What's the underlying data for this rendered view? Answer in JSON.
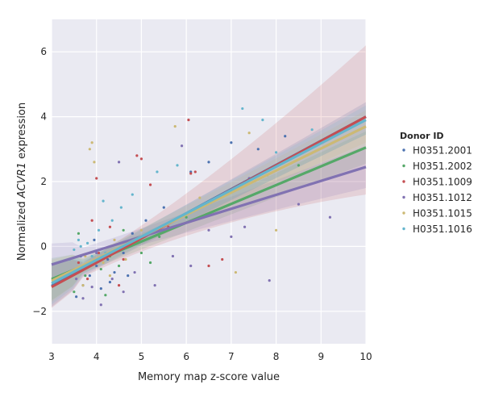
{
  "chart_data": {
    "type": "scatter",
    "xlabel": "Memory map z-score value",
    "ylabel_prefix": "Normalized ",
    "ylabel_gene": "ACVR1",
    "ylabel_suffix": " expression",
    "xlim": [
      3,
      10
    ],
    "ylim": [
      -3,
      7
    ],
    "xticks": [
      3,
      4,
      5,
      6,
      7,
      8,
      9,
      10
    ],
    "yticks": [
      -2,
      0,
      2,
      4,
      6
    ],
    "grid": true,
    "background": "#eaeaf2",
    "legend": {
      "title": "Donor ID",
      "placement": "right"
    },
    "series": [
      {
        "name": "H0351.2001",
        "color": "#4c72b0",
        "fit": {
          "intercept": -3.45,
          "slope": 0.745
        },
        "band": {
          "lo10": 3.45,
          "hi10": 4.45
        },
        "points": [
          [
            3.55,
            -1.55
          ],
          [
            3.7,
            -1.2
          ],
          [
            3.85,
            -0.9
          ],
          [
            4.0,
            -0.6
          ],
          [
            4.1,
            -1.3
          ],
          [
            4.25,
            -0.4
          ],
          [
            4.4,
            -0.8
          ],
          [
            4.6,
            -0.2
          ],
          [
            4.8,
            0.4
          ],
          [
            5.1,
            0.8
          ],
          [
            5.5,
            1.2
          ],
          [
            6.1,
            2.3
          ],
          [
            6.5,
            2.6
          ],
          [
            7.0,
            3.2
          ],
          [
            7.6,
            3.0
          ],
          [
            8.2,
            3.4
          ],
          [
            3.65,
            -0.3
          ],
          [
            3.95,
            0.2
          ],
          [
            4.3,
            -1.1
          ],
          [
            4.7,
            -0.9
          ]
        ]
      },
      {
        "name": "H0351.2002",
        "color": "#55a868",
        "fit": {
          "intercept": -2.75,
          "slope": 0.58
        },
        "band": {
          "lo10": 2.55,
          "hi10": 3.55
        },
        "points": [
          [
            3.5,
            -1.4
          ],
          [
            3.75,
            -0.9
          ],
          [
            3.9,
            -0.5
          ],
          [
            4.1,
            -0.7
          ],
          [
            4.3,
            -0.3
          ],
          [
            4.5,
            -0.6
          ],
          [
            4.75,
            0.1
          ],
          [
            5.0,
            -0.2
          ],
          [
            5.4,
            0.3
          ],
          [
            6.0,
            0.9
          ],
          [
            6.6,
            1.4
          ],
          [
            7.2,
            1.9
          ],
          [
            7.8,
            2.2
          ],
          [
            8.5,
            2.5
          ],
          [
            3.6,
            0.4
          ],
          [
            4.2,
            -1.5
          ],
          [
            4.6,
            0.5
          ],
          [
            5.2,
            -0.5
          ]
        ]
      },
      {
        "name": "H0351.1009",
        "color": "#c44e52",
        "fit": {
          "intercept": -3.5,
          "slope": 0.75
        },
        "band": {
          "lo10": 1.6,
          "hi10": 6.2
        },
        "points": [
          [
            3.6,
            -0.5
          ],
          [
            3.8,
            -1.0
          ],
          [
            4.05,
            -0.2
          ],
          [
            4.3,
            0.6
          ],
          [
            4.6,
            -0.4
          ],
          [
            4.9,
            2.8
          ],
          [
            5.0,
            2.7
          ],
          [
            5.2,
            1.9
          ],
          [
            6.05,
            3.9
          ],
          [
            6.1,
            2.25
          ],
          [
            6.2,
            2.3
          ],
          [
            6.5,
            -0.6
          ],
          [
            4.0,
            2.1
          ],
          [
            4.5,
            -1.2
          ],
          [
            3.9,
            0.8
          ],
          [
            5.6,
            0.6
          ],
          [
            6.8,
            -0.4
          ]
        ]
      },
      {
        "name": "H0351.1012",
        "color": "#8172b2",
        "fit": {
          "intercept": -1.85,
          "slope": 0.43
        },
        "band": {
          "lo10": 1.8,
          "hi10": 3.1
        },
        "points": [
          [
            3.55,
            -1.0
          ],
          [
            3.7,
            -1.6
          ],
          [
            3.9,
            -1.25
          ],
          [
            4.1,
            -1.8
          ],
          [
            4.35,
            -1.0
          ],
          [
            4.6,
            -1.4
          ],
          [
            4.85,
            -0.8
          ],
          [
            5.3,
            -1.2
          ],
          [
            5.7,
            -0.3
          ],
          [
            6.1,
            -0.6
          ],
          [
            6.5,
            0.5
          ],
          [
            7.0,
            0.3
          ],
          [
            7.3,
            0.6
          ],
          [
            7.85,
            -1.05
          ],
          [
            8.5,
            1.3
          ],
          [
            9.2,
            0.9
          ],
          [
            4.0,
            -0.2
          ],
          [
            4.5,
            2.6
          ],
          [
            5.9,
            3.1
          ],
          [
            7.4,
            2.1
          ]
        ]
      },
      {
        "name": "H0351.1015",
        "color": "#ccb974",
        "fit": {
          "intercept": -3.1,
          "slope": 0.68
        },
        "band": {
          "lo10": 3.2,
          "hi10": 4.2
        },
        "points": [
          [
            3.55,
            -0.7
          ],
          [
            3.75,
            -0.3
          ],
          [
            3.85,
            3.0
          ],
          [
            3.9,
            3.2
          ],
          [
            3.95,
            2.6
          ],
          [
            4.15,
            -0.5
          ],
          [
            4.4,
            0.2
          ],
          [
            4.65,
            -0.4
          ],
          [
            5.0,
            0.5
          ],
          [
            5.75,
            3.7
          ],
          [
            6.3,
            1.5
          ],
          [
            7.1,
            -0.8
          ],
          [
            7.4,
            3.5
          ],
          [
            8.0,
            0.5
          ],
          [
            3.7,
            -1.2
          ],
          [
            4.3,
            -0.9
          ]
        ]
      },
      {
        "name": "H0351.1016",
        "color": "#64b5cd",
        "fit": {
          "intercept": -3.3,
          "slope": 0.72
        },
        "band": {
          "lo10": 3.45,
          "hi10": 4.35
        },
        "points": [
          [
            3.4,
            -0.4
          ],
          [
            3.5,
            -0.1
          ],
          [
            3.6,
            0.2
          ],
          [
            3.7,
            -0.6
          ],
          [
            3.8,
            0.1
          ],
          [
            3.9,
            -0.3
          ],
          [
            4.05,
            0.5
          ],
          [
            4.15,
            1.4
          ],
          [
            4.35,
            0.8
          ],
          [
            4.55,
            1.2
          ],
          [
            4.8,
            1.6
          ],
          [
            5.35,
            2.3
          ],
          [
            5.8,
            2.5
          ],
          [
            7.25,
            4.25
          ],
          [
            7.7,
            3.9
          ],
          [
            8.0,
            2.9
          ],
          [
            8.8,
            3.6
          ],
          [
            3.45,
            -0.8
          ],
          [
            3.65,
            0.0
          ],
          [
            4.2,
            -0.2
          ]
        ]
      }
    ]
  }
}
